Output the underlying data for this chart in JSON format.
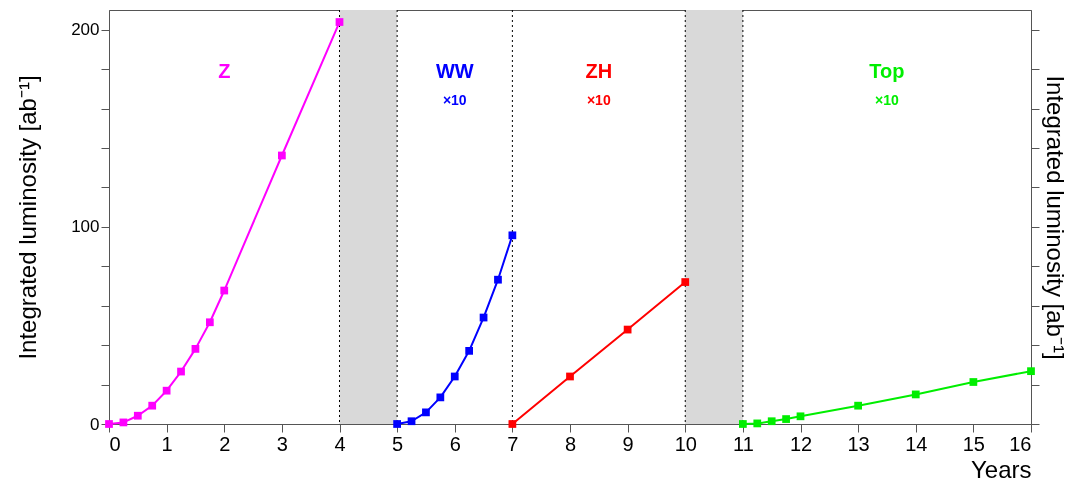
{
  "chart_data": {
    "type": "line",
    "xlabel": "Years",
    "ylabel": "Integrated luminosity [ab⁻¹]",
    "y2label": "Integrated luminosity [ab⁻¹]",
    "xlim": [
      0,
      16
    ],
    "xticks": [
      0,
      1,
      2,
      3,
      4,
      5,
      6,
      7,
      8,
      9,
      10,
      11,
      12,
      13,
      14,
      15,
      16
    ],
    "ylim": [
      0,
      210
    ],
    "yticks": [
      0,
      {
        "value": 20,
        "label": null
      },
      {
        "value": 40,
        "label": null
      },
      {
        "value": 60,
        "label": null
      },
      {
        "value": 80,
        "label": null
      },
      100,
      {
        "value": 120,
        "label": null
      },
      {
        "value": 140,
        "label": null
      },
      {
        "value": 160,
        "label": null
      },
      {
        "value": 180,
        "label": null
      },
      200
    ],
    "marker": "square",
    "line_style": "solid",
    "grid": false,
    "series": [
      {
        "name": "Z",
        "color": "#ff00ff",
        "x": [
          0,
          0.25,
          0.5,
          0.75,
          1,
          1.25,
          1.5,
          1.75,
          2,
          3,
          4
        ],
        "values": [
          0,
          0.8,
          4.2,
          9.3,
          16.9,
          26.6,
          38.1,
          51.6,
          67.7,
          136.2,
          203.9
        ]
      },
      {
        "name": "WW",
        "color": "#0000ff",
        "x": [
          5,
          5.25,
          5.5,
          5.75,
          6,
          6.25,
          6.5,
          6.75,
          7
        ],
        "values": [
          0,
          1.4,
          5.9,
          13.5,
          24.1,
          37.1,
          54,
          73.2,
          95.7
        ]
      },
      {
        "name": "ZH",
        "color": "#ff0000",
        "x": [
          7,
          8,
          9,
          10
        ],
        "values": [
          0,
          24.1,
          47.9,
          72
        ]
      },
      {
        "name": "Top",
        "color": "#00ee00",
        "x": [
          11,
          11.25,
          11.5,
          11.75,
          12,
          13,
          14,
          15,
          16
        ],
        "values": [
          0,
          0.3,
          1.4,
          2.5,
          3.9,
          9.3,
          15,
          21.3,
          26.8
        ]
      }
    ],
    "annotations": [
      "×10",
      "×10",
      "×10"
    ],
    "bands": [
      {
        "axis": "x",
        "from": 4,
        "to": 5,
        "color": "#d9d9d9"
      },
      {
        "axis": "x",
        "from": 10,
        "to": 11,
        "color": "#d9d9d9"
      }
    ],
    "ref_lines": [
      {
        "axis": "x",
        "value": 4,
        "line_style": "dotted"
      },
      {
        "axis": "x",
        "value": 5,
        "line_style": "dotted"
      },
      {
        "axis": "x",
        "value": 7,
        "line_style": "dotted"
      },
      {
        "axis": "x",
        "value": 10,
        "line_style": "dotted"
      },
      {
        "axis": "x",
        "value": 11,
        "line_style": "dotted"
      }
    ]
  }
}
